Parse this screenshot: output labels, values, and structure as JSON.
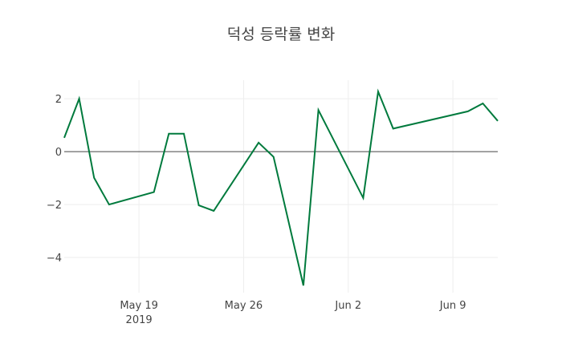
{
  "chart_data": {
    "type": "line",
    "title": "덕성 등락률 변화",
    "xlabel": "",
    "ylabel": "",
    "x": [
      "2019-05-14",
      "2019-05-15",
      "2019-05-16",
      "2019-05-17",
      "2019-05-20",
      "2019-05-21",
      "2019-05-22",
      "2019-05-23",
      "2019-05-24",
      "2019-05-27",
      "2019-05-28",
      "2019-05-30",
      "2019-05-31",
      "2019-06-03",
      "2019-06-04",
      "2019-06-05",
      "2019-06-10",
      "2019-06-11",
      "2019-06-12"
    ],
    "series": [
      {
        "name": "덕성",
        "color": "#007a3d",
        "values": [
          0.52,
          2.0,
          -0.99,
          -2.0,
          -1.53,
          0.68,
          0.68,
          -2.03,
          -2.24,
          0.34,
          -0.2,
          -5.06,
          1.57,
          -1.75,
          2.27,
          0.87,
          1.52,
          1.82,
          1.16
        ]
      }
    ],
    "xlim": [
      "2019-05-14",
      "2019-06-12"
    ],
    "ylim": [
      -5.33,
      2.7
    ],
    "x_ticks": [
      {
        "date": "2019-05-19",
        "label": "May 19",
        "sublabel": "2019"
      },
      {
        "date": "2019-05-26",
        "label": "May 26"
      },
      {
        "date": "2019-06-02",
        "label": "Jun 2"
      },
      {
        "date": "2019-06-09",
        "label": "Jun 9"
      }
    ],
    "y_ticks": [
      {
        "value": 2,
        "label": "2"
      },
      {
        "value": 0,
        "label": "0"
      },
      {
        "value": -2,
        "label": "−2"
      },
      {
        "value": -4,
        "label": "−4"
      }
    ],
    "grid": true,
    "zero_line": true,
    "legend": "none"
  }
}
